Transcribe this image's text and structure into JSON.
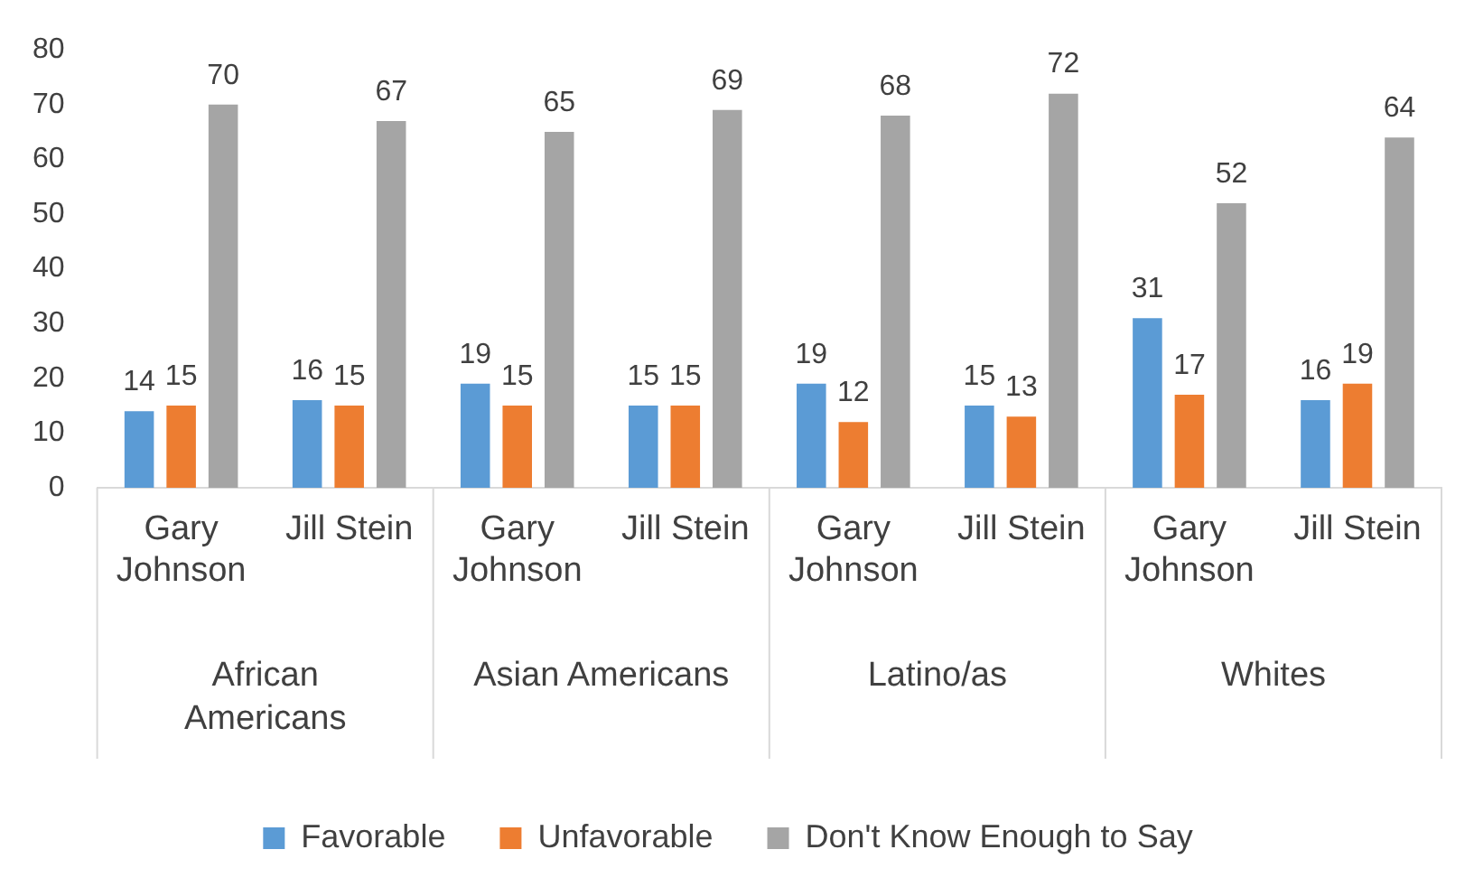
{
  "chart_data": {
    "type": "bar",
    "categories": [
      "Gary Johnson",
      "Jill Stein",
      "Gary Johnson",
      "Jill Stein",
      "Gary Johnson",
      "Jill Stein",
      "Gary Johnson",
      "Jill Stein"
    ],
    "series": [
      {
        "name": "Favorable",
        "color": "#5b9bd5",
        "values": [
          14,
          16,
          19,
          15,
          19,
          15,
          31,
          16
        ]
      },
      {
        "name": "Unfavorable",
        "color": "#ed7d31",
        "values": [
          15,
          15,
          15,
          15,
          12,
          13,
          17,
          19
        ]
      },
      {
        "name": "Don't Know Enough to Say",
        "color": "#a5a5a5",
        "values": [
          70,
          67,
          65,
          69,
          68,
          72,
          52,
          64
        ]
      }
    ],
    "annotations": [
      "African Americans",
      "Asian Americans",
      "Latino/as",
      "Whites"
    ],
    "ylim": [
      0,
      80
    ],
    "yticks": [
      0,
      10,
      20,
      30,
      40,
      50,
      60,
      70,
      80
    ],
    "grid": false,
    "legend": "bottom",
    "data_labels": true
  }
}
